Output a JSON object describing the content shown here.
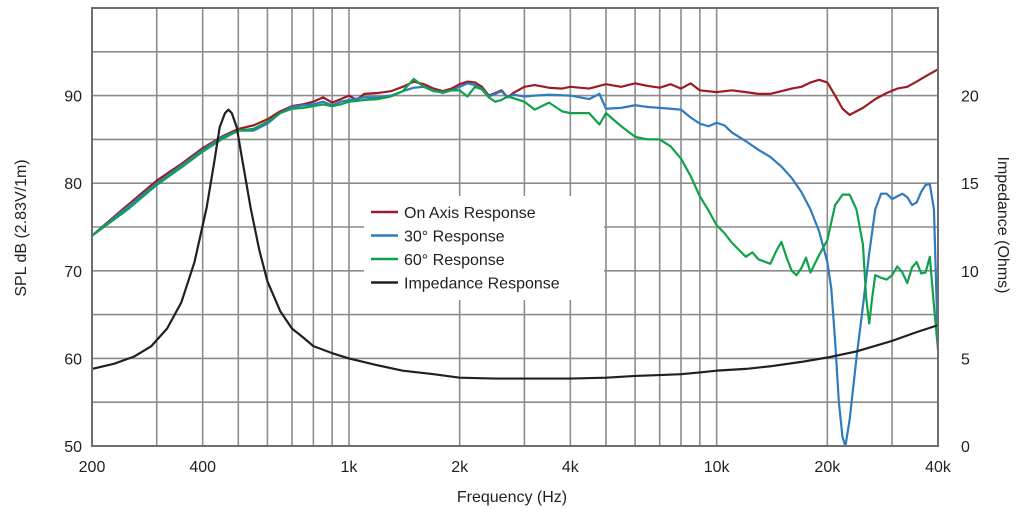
{
  "chart_data": {
    "type": "line",
    "title": "",
    "xlabel": "Frequency (Hz)",
    "ylabel": "SPL dB (2.83V/1m)",
    "y2label": "Impedance (Ohms)",
    "x_scale": "log",
    "xlim": [
      200,
      40000
    ],
    "ylim": [
      50,
      100
    ],
    "y2lim": [
      0,
      25
    ],
    "grid": true,
    "legend_position": "center",
    "x_ticks": [
      {
        "value": 200,
        "label": "200"
      },
      {
        "value": 400,
        "label": "400"
      },
      {
        "value": 1000,
        "label": "1k"
      },
      {
        "value": 2000,
        "label": "2k"
      },
      {
        "value": 4000,
        "label": "4k"
      },
      {
        "value": 10000,
        "label": "10k"
      },
      {
        "value": 20000,
        "label": "20k"
      },
      {
        "value": 40000,
        "label": "40k"
      }
    ],
    "y_ticks": [
      {
        "value": 50,
        "label": "50"
      },
      {
        "value": 60,
        "label": "60"
      },
      {
        "value": 70,
        "label": "70"
      },
      {
        "value": 80,
        "label": "80"
      },
      {
        "value": 90,
        "label": "90"
      }
    ],
    "y2_ticks": [
      {
        "value": 0,
        "label": "0"
      },
      {
        "value": 5,
        "label": "5"
      },
      {
        "value": 10,
        "label": "10"
      },
      {
        "value": 15,
        "label": "15"
      },
      {
        "value": 20,
        "label": "20"
      }
    ],
    "series": [
      {
        "name": "On Axis Response",
        "color": "#9b1c23",
        "axis": "left",
        "points": [
          [
            200,
            74
          ],
          [
            250,
            77.5
          ],
          [
            300,
            80.3
          ],
          [
            350,
            82.2
          ],
          [
            400,
            84
          ],
          [
            450,
            85.3
          ],
          [
            500,
            86.2
          ],
          [
            550,
            86.6
          ],
          [
            600,
            87.3
          ],
          [
            650,
            88.2
          ],
          [
            700,
            88.8
          ],
          [
            750,
            89
          ],
          [
            800,
            89.3
          ],
          [
            850,
            89.8
          ],
          [
            900,
            89.2
          ],
          [
            950,
            89.6
          ],
          [
            1000,
            90
          ],
          [
            1050,
            89.5
          ],
          [
            1100,
            90.2
          ],
          [
            1200,
            90.3
          ],
          [
            1300,
            90.5
          ],
          [
            1400,
            91
          ],
          [
            1500,
            91.6
          ],
          [
            1600,
            91.3
          ],
          [
            1700,
            90.8
          ],
          [
            1800,
            90.5
          ],
          [
            1900,
            90.8
          ],
          [
            2000,
            91.3
          ],
          [
            2100,
            91.6
          ],
          [
            2200,
            91.5
          ],
          [
            2300,
            91
          ],
          [
            2400,
            90
          ],
          [
            2500,
            90.3
          ],
          [
            2600,
            90.6
          ],
          [
            2700,
            89.8
          ],
          [
            2800,
            90.3
          ],
          [
            3000,
            91
          ],
          [
            3200,
            91.2
          ],
          [
            3500,
            90.9
          ],
          [
            3800,
            90.8
          ],
          [
            4000,
            91
          ],
          [
            4500,
            90.8
          ],
          [
            5000,
            91.3
          ],
          [
            5500,
            91
          ],
          [
            6000,
            91.4
          ],
          [
            6500,
            91.1
          ],
          [
            7000,
            90.9
          ],
          [
            7500,
            91.3
          ],
          [
            8000,
            90.8
          ],
          [
            8500,
            91.4
          ],
          [
            9000,
            90.6
          ],
          [
            10000,
            90.4
          ],
          [
            11000,
            90.6
          ],
          [
            12000,
            90.4
          ],
          [
            13000,
            90.2
          ],
          [
            14000,
            90.2
          ],
          [
            15000,
            90.5
          ],
          [
            16000,
            90.8
          ],
          [
            17000,
            91
          ],
          [
            18000,
            91.5
          ],
          [
            19000,
            91.8
          ],
          [
            20000,
            91.5
          ],
          [
            21000,
            90
          ],
          [
            22000,
            88.5
          ],
          [
            23000,
            87.8
          ],
          [
            25000,
            88.6
          ],
          [
            27000,
            89.6
          ],
          [
            29000,
            90.3
          ],
          [
            31000,
            90.8
          ],
          [
            33000,
            91
          ],
          [
            35000,
            91.6
          ],
          [
            37000,
            92.2
          ],
          [
            40000,
            93
          ]
        ]
      },
      {
        "name": "30° Response",
        "color": "#2e7bbf",
        "axis": "left",
        "points": [
          [
            200,
            74
          ],
          [
            250,
            77.3
          ],
          [
            300,
            80
          ],
          [
            350,
            82
          ],
          [
            400,
            83.8
          ],
          [
            450,
            85.2
          ],
          [
            500,
            86
          ],
          [
            550,
            86
          ],
          [
            600,
            86.8
          ],
          [
            650,
            88
          ],
          [
            700,
            88.7
          ],
          [
            750,
            88.9
          ],
          [
            800,
            89
          ],
          [
            850,
            89.3
          ],
          [
            900,
            88.9
          ],
          [
            950,
            89.3
          ],
          [
            1000,
            89.5
          ],
          [
            1100,
            89.8
          ],
          [
            1200,
            89.8
          ],
          [
            1300,
            90
          ],
          [
            1400,
            90.5
          ],
          [
            1500,
            90.9
          ],
          [
            1600,
            91
          ],
          [
            1700,
            90.6
          ],
          [
            1800,
            90.3
          ],
          [
            1900,
            90.6
          ],
          [
            2000,
            91
          ],
          [
            2100,
            91.4
          ],
          [
            2200,
            91.2
          ],
          [
            2300,
            90.8
          ],
          [
            2400,
            89.9
          ],
          [
            2500,
            90.2
          ],
          [
            2600,
            90.5
          ],
          [
            2700,
            89.8
          ],
          [
            2800,
            90.1
          ],
          [
            3000,
            89.9
          ],
          [
            3200,
            90
          ],
          [
            3500,
            90.1
          ],
          [
            4000,
            90
          ],
          [
            4500,
            89.6
          ],
          [
            4800,
            90.2
          ],
          [
            5000,
            88.5
          ],
          [
            5500,
            88.6
          ],
          [
            6000,
            88.9
          ],
          [
            6500,
            88.7
          ],
          [
            7000,
            88.6
          ],
          [
            7500,
            88.5
          ],
          [
            8000,
            88.4
          ],
          [
            8500,
            87.5
          ],
          [
            9000,
            86.8
          ],
          [
            9500,
            86.5
          ],
          [
            10000,
            86.9
          ],
          [
            10500,
            86.6
          ],
          [
            11000,
            85.8
          ],
          [
            12000,
            84.8
          ],
          [
            13000,
            83.8
          ],
          [
            14000,
            83
          ],
          [
            15000,
            81.9
          ],
          [
            16000,
            80.6
          ],
          [
            17000,
            79
          ],
          [
            18000,
            77
          ],
          [
            19000,
            74.5
          ],
          [
            20000,
            71
          ],
          [
            20500,
            68
          ],
          [
            21000,
            62
          ],
          [
            21500,
            55
          ],
          [
            22000,
            51
          ],
          [
            22400,
            50
          ],
          [
            23000,
            53
          ],
          [
            24000,
            60
          ],
          [
            25000,
            66
          ],
          [
            26000,
            72
          ],
          [
            27000,
            77
          ],
          [
            28000,
            78.8
          ],
          [
            29000,
            78.8
          ],
          [
            30000,
            78.2
          ],
          [
            31000,
            78.5
          ],
          [
            32000,
            78.8
          ],
          [
            33000,
            78.4
          ],
          [
            34000,
            77.5
          ],
          [
            35000,
            77.8
          ],
          [
            36000,
            79
          ],
          [
            37000,
            79.8
          ],
          [
            38000,
            79.9
          ],
          [
            39000,
            77
          ],
          [
            40000,
            61
          ]
        ]
      },
      {
        "name": "60° Response",
        "color": "#11a14b",
        "axis": "left",
        "points": [
          [
            200,
            74
          ],
          [
            250,
            77
          ],
          [
            300,
            79.8
          ],
          [
            350,
            81.8
          ],
          [
            400,
            83.6
          ],
          [
            450,
            85
          ],
          [
            500,
            86
          ],
          [
            550,
            86.2
          ],
          [
            600,
            87
          ],
          [
            650,
            88
          ],
          [
            700,
            88.5
          ],
          [
            750,
            88.6
          ],
          [
            800,
            88.8
          ],
          [
            850,
            89
          ],
          [
            900,
            88.8
          ],
          [
            950,
            89
          ],
          [
            1000,
            89.3
          ],
          [
            1100,
            89.5
          ],
          [
            1200,
            89.6
          ],
          [
            1300,
            89.9
          ],
          [
            1400,
            90.5
          ],
          [
            1500,
            91.9
          ],
          [
            1600,
            91
          ],
          [
            1700,
            90.5
          ],
          [
            1800,
            90.4
          ],
          [
            1900,
            90.6
          ],
          [
            2000,
            90.6
          ],
          [
            2100,
            89.9
          ],
          [
            2200,
            91
          ],
          [
            2300,
            90.7
          ],
          [
            2400,
            89.8
          ],
          [
            2500,
            89.3
          ],
          [
            2600,
            89.5
          ],
          [
            2700,
            89.9
          ],
          [
            2800,
            89.7
          ],
          [
            3000,
            89.3
          ],
          [
            3200,
            88.4
          ],
          [
            3500,
            89.2
          ],
          [
            3800,
            88.2
          ],
          [
            4000,
            88
          ],
          [
            4500,
            88
          ],
          [
            4800,
            86.7
          ],
          [
            5000,
            88
          ],
          [
            5500,
            86.5
          ],
          [
            6000,
            85.3
          ],
          [
            6500,
            85
          ],
          [
            7000,
            85
          ],
          [
            7500,
            84.2
          ],
          [
            8000,
            82.8
          ],
          [
            8500,
            80.8
          ],
          [
            9000,
            78.5
          ],
          [
            9500,
            76.9
          ],
          [
            10000,
            75.2
          ],
          [
            10500,
            74.3
          ],
          [
            11000,
            73.2
          ],
          [
            12000,
            71.6
          ],
          [
            12500,
            72.1
          ],
          [
            13000,
            71.3
          ],
          [
            14000,
            70.8
          ],
          [
            14500,
            72.2
          ],
          [
            15000,
            73.3
          ],
          [
            15500,
            71.5
          ],
          [
            16000,
            70
          ],
          [
            16500,
            69.5
          ],
          [
            17000,
            70.3
          ],
          [
            17500,
            71.5
          ],
          [
            18000,
            69.8
          ],
          [
            19000,
            71.8
          ],
          [
            20000,
            73.5
          ],
          [
            21000,
            77.5
          ],
          [
            22000,
            78.7
          ],
          [
            23000,
            78.7
          ],
          [
            24000,
            77
          ],
          [
            25000,
            73
          ],
          [
            25500,
            67
          ],
          [
            26000,
            64
          ],
          [
            26500,
            67
          ],
          [
            27000,
            69.5
          ],
          [
            28000,
            69.2
          ],
          [
            29000,
            69
          ],
          [
            30000,
            69.5
          ],
          [
            31000,
            70.5
          ],
          [
            32000,
            69.8
          ],
          [
            33000,
            68.6
          ],
          [
            34000,
            70.4
          ],
          [
            35000,
            71
          ],
          [
            36000,
            69.7
          ],
          [
            37000,
            69.8
          ],
          [
            38000,
            71.6
          ],
          [
            39000,
            66
          ],
          [
            40000,
            61
          ]
        ]
      },
      {
        "name": "Impedance Response",
        "color": "#231f20",
        "axis": "right",
        "points": [
          [
            200,
            4.4
          ],
          [
            230,
            4.7
          ],
          [
            260,
            5.1
          ],
          [
            290,
            5.7
          ],
          [
            320,
            6.7
          ],
          [
            350,
            8.2
          ],
          [
            380,
            10.5
          ],
          [
            410,
            13.6
          ],
          [
            430,
            16.2
          ],
          [
            445,
            18.2
          ],
          [
            460,
            19
          ],
          [
            470,
            19.2
          ],
          [
            480,
            19
          ],
          [
            495,
            18.2
          ],
          [
            510,
            16.6
          ],
          [
            540,
            13.6
          ],
          [
            570,
            11.2
          ],
          [
            600,
            9.4
          ],
          [
            650,
            7.7
          ],
          [
            700,
            6.7
          ],
          [
            750,
            6.2
          ],
          [
            800,
            5.7
          ],
          [
            900,
            5.3
          ],
          [
            1000,
            5
          ],
          [
            1200,
            4.6
          ],
          [
            1400,
            4.3
          ],
          [
            1700,
            4.1
          ],
          [
            2000,
            3.9
          ],
          [
            2500,
            3.85
          ],
          [
            3000,
            3.85
          ],
          [
            4000,
            3.85
          ],
          [
            5000,
            3.9
          ],
          [
            6000,
            4
          ],
          [
            7000,
            4.05
          ],
          [
            8000,
            4.1
          ],
          [
            9000,
            4.2
          ],
          [
            10000,
            4.3
          ],
          [
            12000,
            4.4
          ],
          [
            14000,
            4.55
          ],
          [
            17000,
            4.8
          ],
          [
            20000,
            5.05
          ],
          [
            24000,
            5.4
          ],
          [
            30000,
            6
          ],
          [
            35000,
            6.5
          ],
          [
            40000,
            6.9
          ]
        ]
      }
    ]
  }
}
